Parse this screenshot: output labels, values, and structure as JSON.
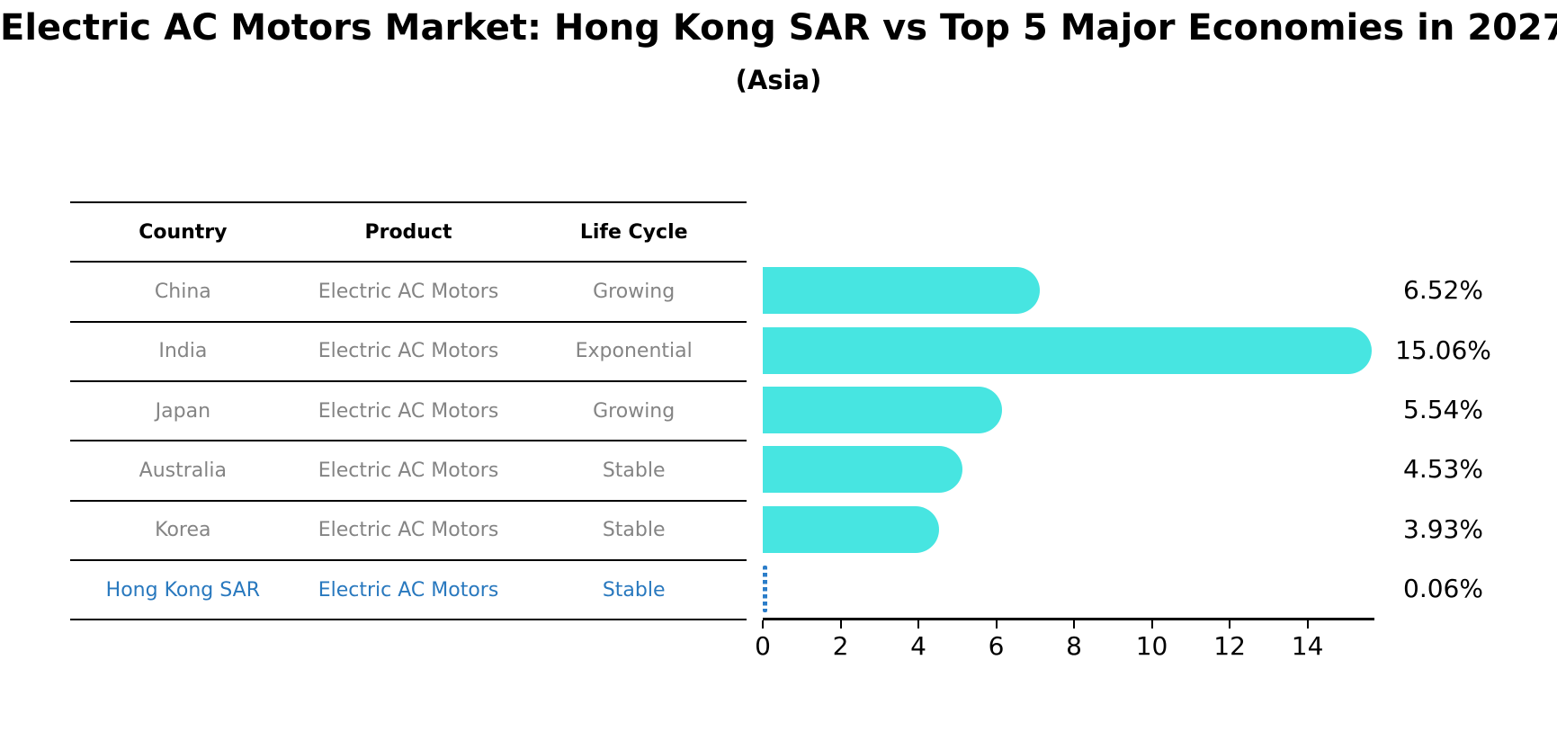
{
  "title": "Electric AC Motors Market: Hong Kong SAR vs Top 5 Major Economies in 2027",
  "subtitle": "(Asia)",
  "table": {
    "headers": [
      "Country",
      "Product",
      "Life Cycle"
    ],
    "rows": [
      {
        "country": "China",
        "product": "Electric AC Motors",
        "life_cycle": "Growing",
        "highlighted": false
      },
      {
        "country": "India",
        "product": "Electric AC Motors",
        "life_cycle": "Exponential",
        "highlighted": false
      },
      {
        "country": "Japan",
        "product": "Electric AC Motors",
        "life_cycle": "Growing",
        "highlighted": false
      },
      {
        "country": "Australia",
        "product": "Electric AC Motors",
        "life_cycle": "Stable",
        "highlighted": false
      },
      {
        "country": "Korea",
        "product": "Electric AC Motors",
        "life_cycle": "Stable",
        "highlighted": false
      },
      {
        "country": "Hong Kong SAR",
        "product": "Electric AC Motors",
        "life_cycle": "Stable",
        "highlighted": true
      }
    ]
  },
  "chart_data": {
    "type": "bar",
    "orientation": "horizontal",
    "categories": [
      "China",
      "India",
      "Japan",
      "Australia",
      "Korea",
      "Hong Kong SAR"
    ],
    "values": [
      6.52,
      15.06,
      5.54,
      4.53,
      3.93,
      0.06
    ],
    "value_labels": [
      "6.52%",
      "15.06%",
      "5.54%",
      "4.53%",
      "3.93%",
      "0.06%"
    ],
    "title": "Electric AC Motors Market: Hong Kong SAR vs Top 5 Major Economies in 2027 (Asia)",
    "xlabel": "",
    "ylabel": "",
    "xticks": [
      0,
      2,
      4,
      6,
      8,
      10,
      12,
      14
    ],
    "xlim": [
      0,
      15.72
    ],
    "grid": false,
    "legend": null,
    "highlight_index": 5
  },
  "colors": {
    "bar": "#47e5e1",
    "highlight_bar": "#2b7dc9",
    "highlight_text": "#2878be",
    "table_text": "#848484",
    "header_text": "#000000",
    "axis": "#000000",
    "background": "#ffffff"
  }
}
